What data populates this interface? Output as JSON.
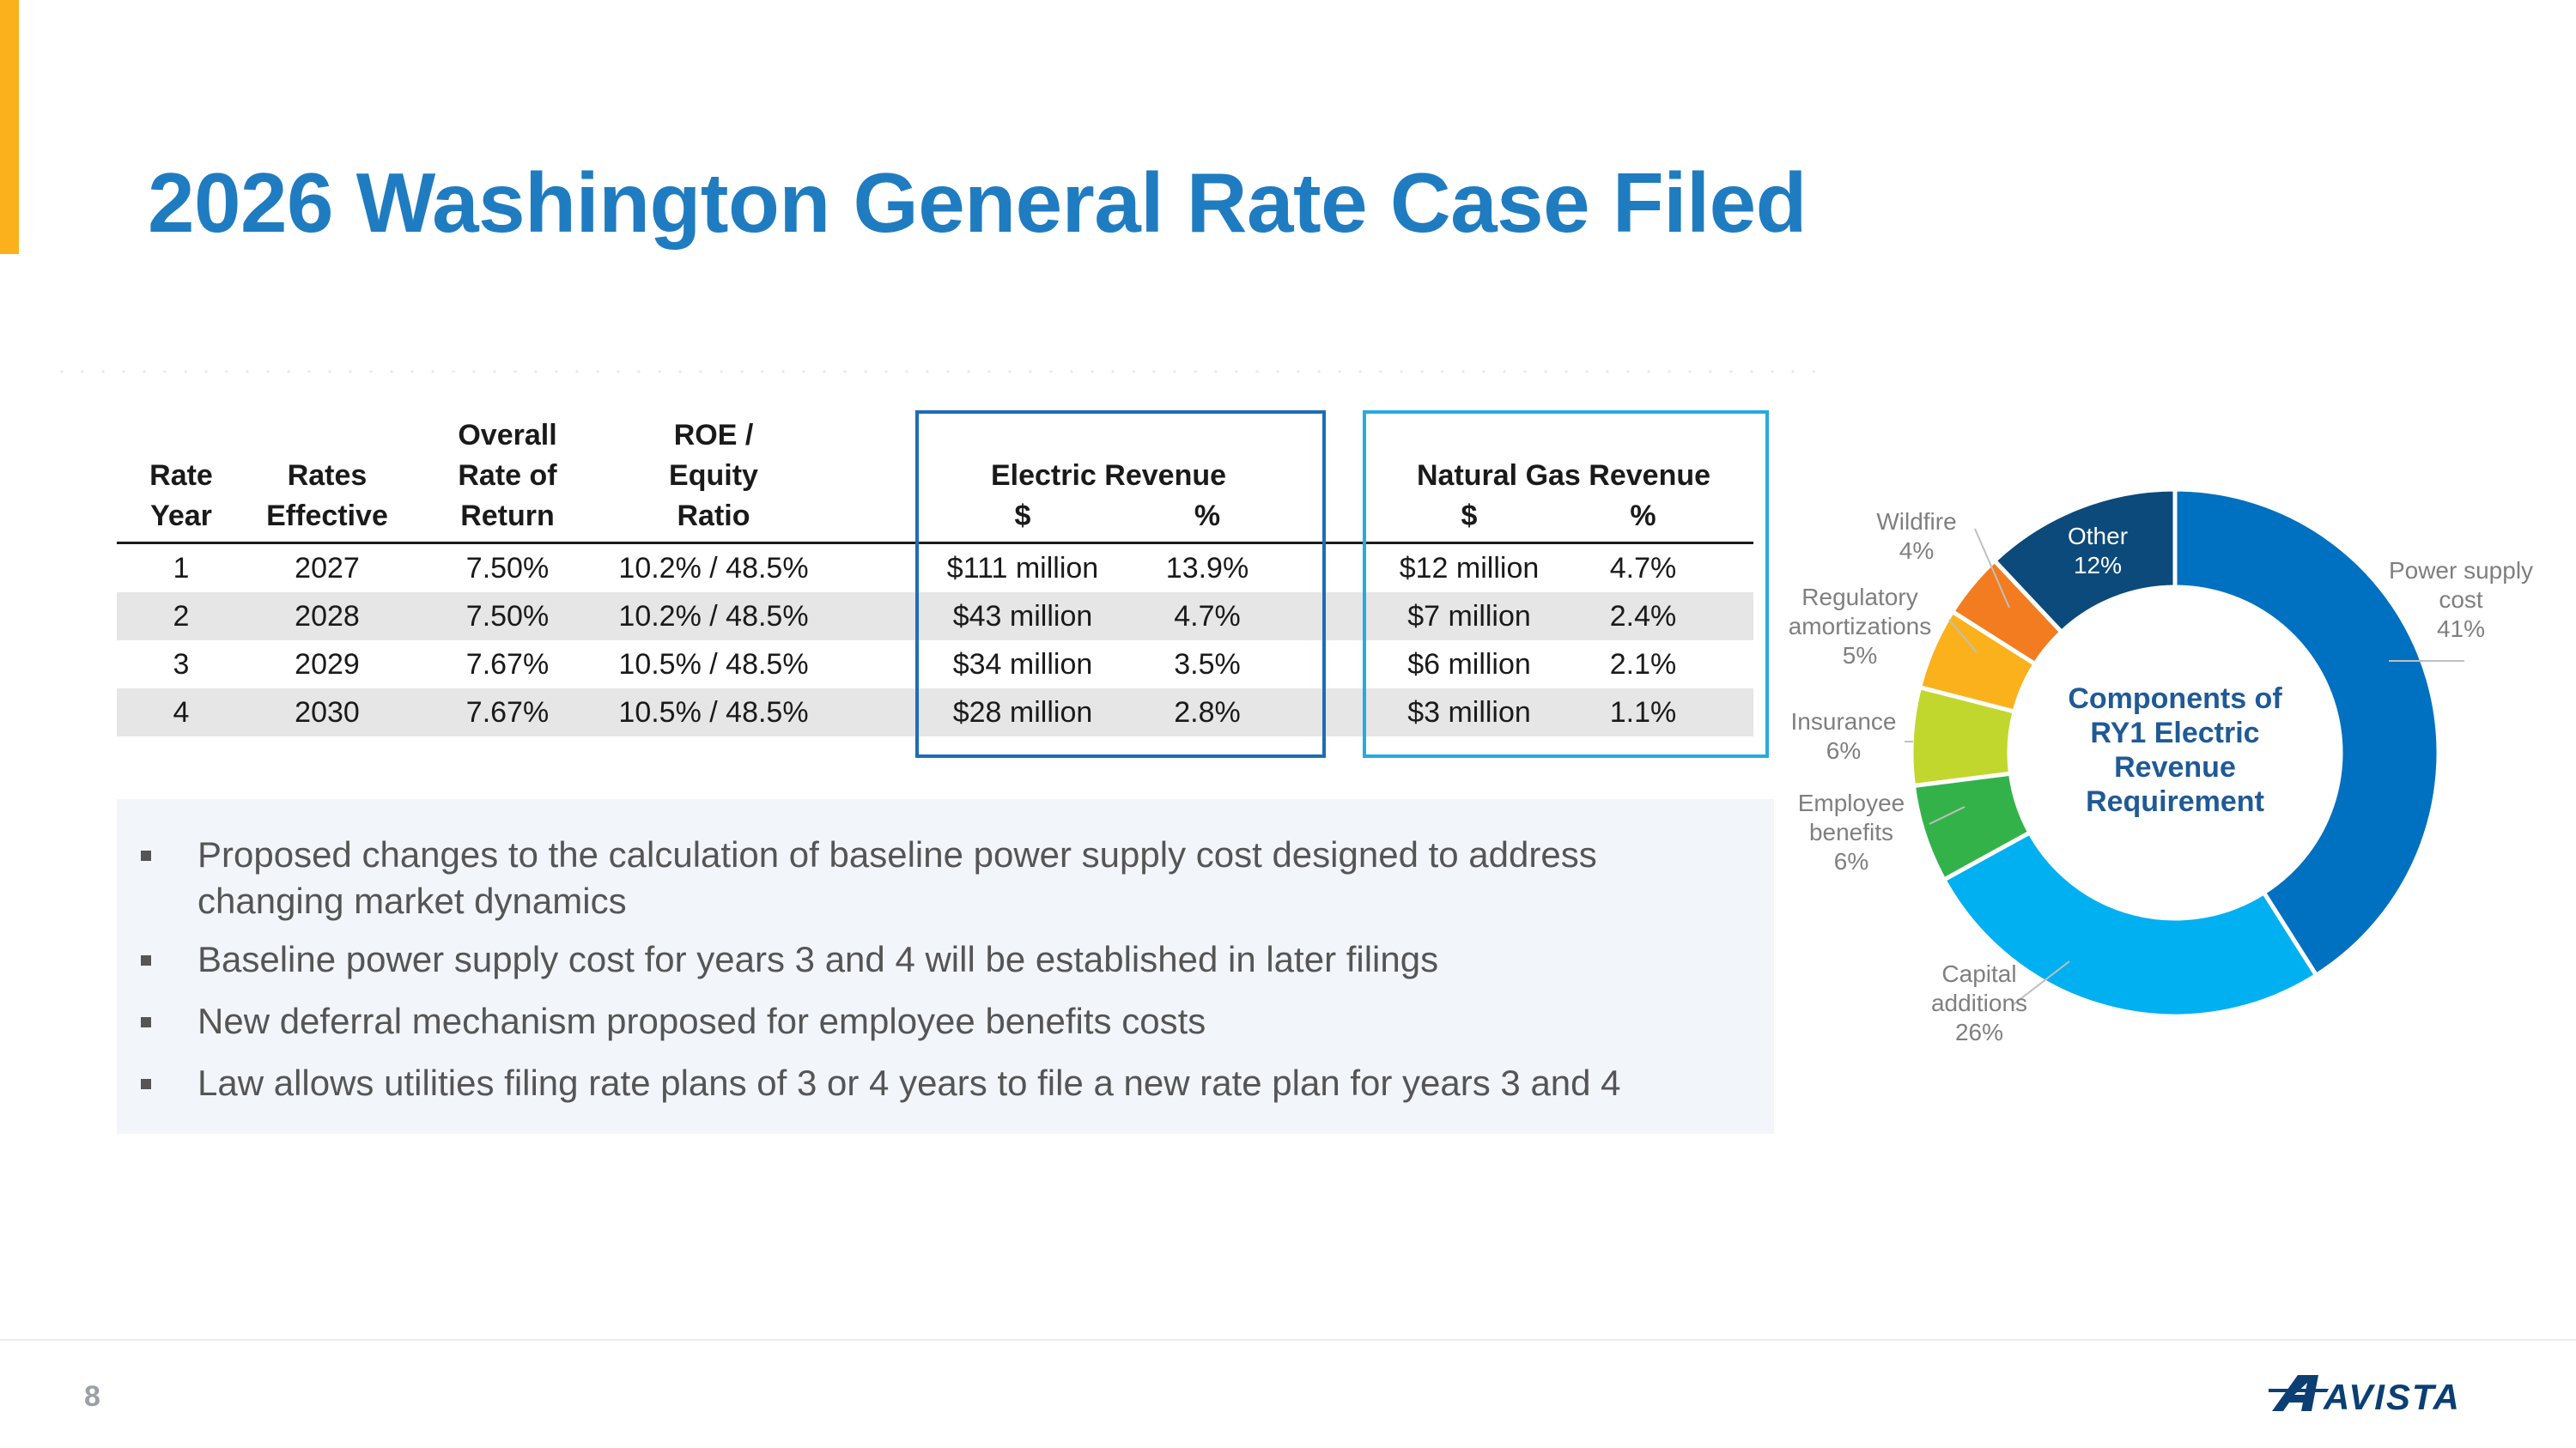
{
  "slide": {
    "title": "2026 Washington General Rate Case Filed",
    "page_number": "8",
    "logo_text": "AVISTA"
  },
  "table": {
    "headers": {
      "rate_year": "Rate\nYear",
      "rates_effective": "Rates\nEffective",
      "overall_ror": "Overall\nRate of\nReturn",
      "roe_equity": "ROE /\nEquity\nRatio",
      "electric_revenue": "Electric Revenue",
      "electric_dollar": "$",
      "electric_pct": "%",
      "gas_revenue": "Natural Gas Revenue",
      "gas_dollar": "$",
      "gas_pct": "%"
    },
    "rows": [
      {
        "year": "1",
        "effective": "2027",
        "ror": "7.50%",
        "roe": "10.2% / 48.5%",
        "elec_amt": "$111 million",
        "elec_pct": "13.9%",
        "gas_amt": "$12 million",
        "gas_pct": "4.7%"
      },
      {
        "year": "2",
        "effective": "2028",
        "ror": "7.50%",
        "roe": "10.2% / 48.5%",
        "elec_amt": "$43 million",
        "elec_pct": "4.7%",
        "gas_amt": "$7 million",
        "gas_pct": "2.4%"
      },
      {
        "year": "3",
        "effective": "2029",
        "ror": "7.67%",
        "roe": "10.5% / 48.5%",
        "elec_amt": "$34 million",
        "elec_pct": "3.5%",
        "gas_amt": "$6 million",
        "gas_pct": "2.1%"
      },
      {
        "year": "4",
        "effective": "2030",
        "ror": "7.67%",
        "roe": "10.5% / 48.5%",
        "elec_amt": "$28 million",
        "elec_pct": "2.8%",
        "gas_amt": "$3 million",
        "gas_pct": "1.1%"
      }
    ],
    "colors": {
      "electric_box": "#1f6cb5",
      "gas_box": "#28a9e0",
      "shade": "#e6e6e6"
    }
  },
  "bullets": [
    "Proposed changes to the calculation of baseline power supply cost designed to address changing market dynamics",
    "Baseline power supply cost for years 3 and 4 will be established in later filings",
    "New deferral mechanism proposed for employee benefits costs",
    "Law allows utilities filing rate plans of 3 or 4 years to file a new rate plan for years 3 and 4"
  ],
  "chart_data": {
    "type": "pie",
    "style": "donut",
    "title": "Components of RY1 Electric Revenue Requirement",
    "center_label": [
      "Components of",
      "RY1 Electric",
      "Revenue",
      "Requirement"
    ],
    "unit": "%",
    "slices": [
      {
        "name": "Power supply cost",
        "label_lines": [
          "Power supply",
          "cost",
          "41%"
        ],
        "value": 41,
        "color": "#0070c0"
      },
      {
        "name": "Capital additions",
        "label_lines": [
          "Capital",
          "additions",
          "26%"
        ],
        "value": 26,
        "color": "#00b0f0"
      },
      {
        "name": "Employee benefits",
        "label_lines": [
          "Employee",
          "benefits",
          "6%"
        ],
        "value": 6,
        "color": "#33b249"
      },
      {
        "name": "Insurance",
        "label_lines": [
          "Insurance",
          "6%"
        ],
        "value": 6,
        "color": "#c1d72e"
      },
      {
        "name": "Regulatory amortizations",
        "label_lines": [
          "Regulatory",
          "amortizations",
          "5%"
        ],
        "value": 5,
        "color": "#fbb11b"
      },
      {
        "name": "Wildfire",
        "label_lines": [
          "Wildfire",
          "4%"
        ],
        "value": 4,
        "color": "#f37c20"
      },
      {
        "name": "Other",
        "label_lines": [
          "Other",
          "12%"
        ],
        "value": 12,
        "color": "#0b4a7a"
      }
    ],
    "start_angle_deg": 0,
    "direction": "clockwise",
    "legend": "none"
  }
}
